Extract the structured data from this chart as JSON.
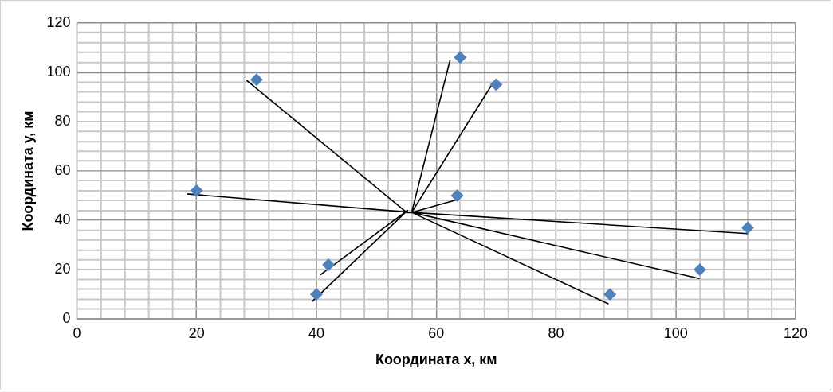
{
  "chart_data": {
    "type": "scatter",
    "xlabel": "Координата x, км",
    "ylabel": "Координата y, км",
    "xlim": [
      0,
      120
    ],
    "ylim": [
      0,
      120
    ],
    "xticks": [
      0,
      {
        "value": 4,
        "label": null
      },
      {
        "value": 8,
        "label": null
      },
      {
        "value": 12,
        "label": null
      },
      {
        "value": 16,
        "label": null
      },
      20,
      {
        "value": 24,
        "label": null
      },
      {
        "value": 28,
        "label": null
      },
      {
        "value": 32,
        "label": null
      },
      {
        "value": 36,
        "label": null
      },
      40,
      {
        "value": 44,
        "label": null
      },
      {
        "value": 48,
        "label": null
      },
      {
        "value": 52,
        "label": null
      },
      {
        "value": 56,
        "label": null
      },
      60,
      {
        "value": 64,
        "label": null
      },
      {
        "value": 68,
        "label": null
      },
      {
        "value": 72,
        "label": null
      },
      {
        "value": 76,
        "label": null
      },
      80,
      {
        "value": 84,
        "label": null
      },
      {
        "value": 88,
        "label": null
      },
      {
        "value": 92,
        "label": null
      },
      {
        "value": 96,
        "label": null
      },
      100,
      {
        "value": 104,
        "label": null
      },
      {
        "value": 108,
        "label": null
      },
      {
        "value": 112,
        "label": null
      },
      {
        "value": 116,
        "label": null
      },
      120
    ],
    "yticks": [
      0,
      {
        "value": 4,
        "label": null
      },
      {
        "value": 8,
        "label": null
      },
      {
        "value": 12,
        "label": null
      },
      {
        "value": 16,
        "label": null
      },
      20,
      {
        "value": 24,
        "label": null
      },
      {
        "value": 28,
        "label": null
      },
      {
        "value": 32,
        "label": null
      },
      {
        "value": 36,
        "label": null
      },
      40,
      {
        "value": 44,
        "label": null
      },
      {
        "value": 48,
        "label": null
      },
      {
        "value": 52,
        "label": null
      },
      {
        "value": 56,
        "label": null
      },
      60,
      {
        "value": 64,
        "label": null
      },
      {
        "value": 68,
        "label": null
      },
      {
        "value": 72,
        "label": null
      },
      {
        "value": 76,
        "label": null
      },
      80,
      {
        "value": 84,
        "label": null
      },
      {
        "value": 88,
        "label": null
      },
      {
        "value": 92,
        "label": null
      },
      {
        "value": 96,
        "label": null
      },
      100,
      {
        "value": 104,
        "label": null
      },
      {
        "value": 108,
        "label": null
      },
      {
        "value": 112,
        "label": null
      },
      {
        "value": 116,
        "label": null
      },
      120
    ],
    "grid": true,
    "legend": false,
    "x": [
      20,
      30,
      64,
      70,
      63.5,
      112,
      104,
      89,
      42,
      40
    ],
    "series": [
      {
        "type": "scatter",
        "color": "#4f81bd",
        "marker": "diamond",
        "values": [
          52,
          97,
          106,
          95,
          50,
          37,
          20,
          10,
          22,
          10
        ]
      },
      {
        "type": "line",
        "color": "#000000",
        "marker": "none",
        "x": [
          18.4,
          55.9,
          63.1,
          55.9,
          62.3,
          55.9,
          69.5,
          55.9,
          112,
          55.9,
          103.9,
          55.9,
          88.7,
          55.9,
          55.1,
          28.4,
          55.1,
          55.2,
          40.7,
          55.2,
          39.3
        ],
        "values": [
          50.7,
          43.2,
          48.1,
          43.2,
          104.9,
          43.2,
          95.8,
          43.2,
          34.6,
          43.2,
          16.4,
          43.2,
          6.2,
          43.2,
          43.1,
          96.6,
          43.1,
          44,
          18,
          44,
          7.1
        ]
      }
    ]
  }
}
